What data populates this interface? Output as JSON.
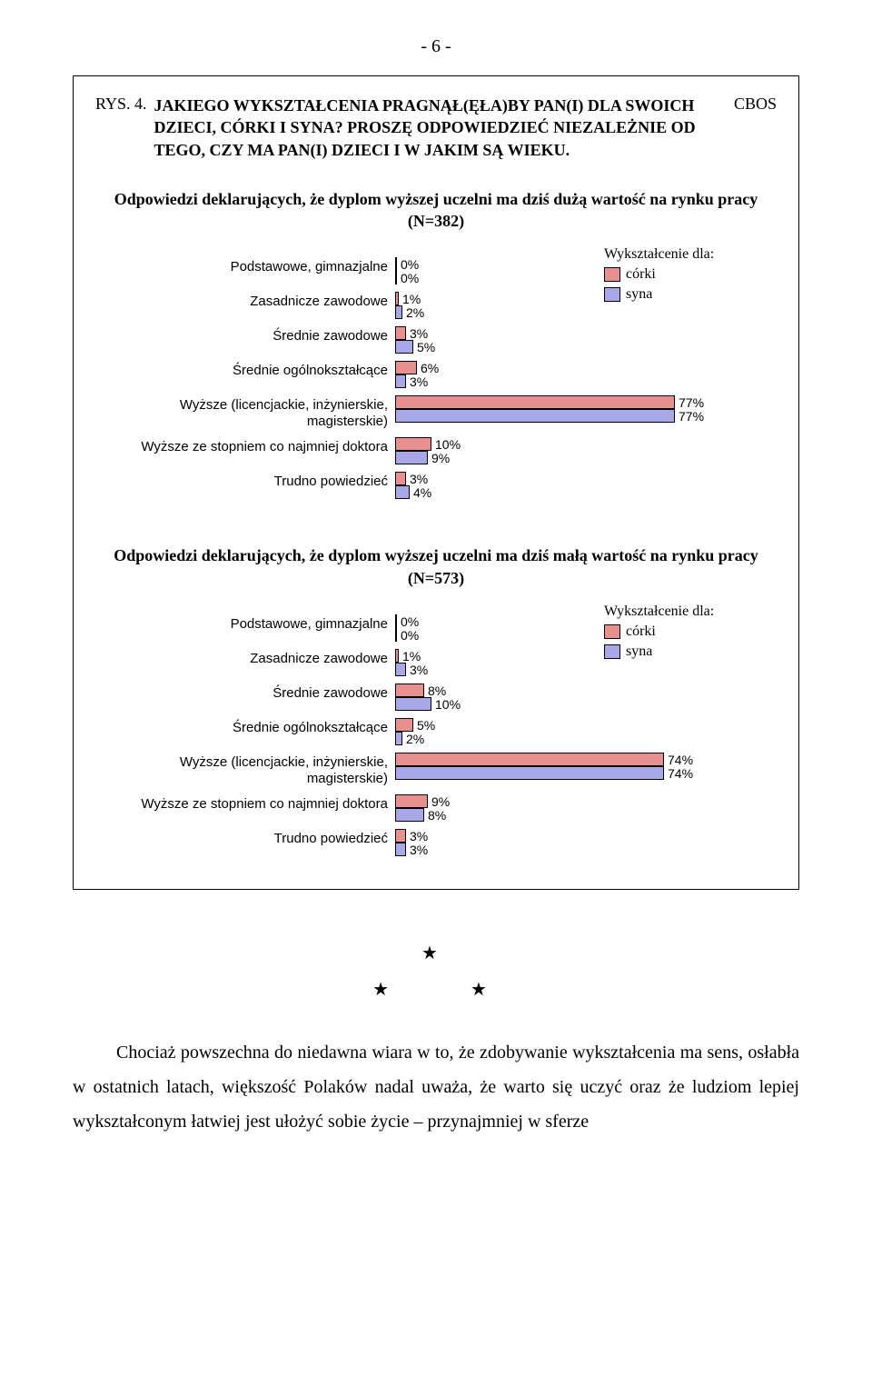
{
  "page": {
    "header": "- 6 -"
  },
  "box": {
    "rys": "RYS. 4.",
    "title_line1": "JAKIEGO WYKSZTAŁCENIA PRAGNĄŁ(ĘŁA)BY PAN(I) DLA SWOICH DZIECI, CÓRKI I SYNA?",
    "title_line2": "PROSZĘ ODPOWIEDZIEĆ NIEZALEŻNIE OD TEGO, CZY MA PAN(I) DZIECI I W JAKIM SĄ WIEKU.",
    "cbos": "CBOS"
  },
  "legend": {
    "title": "Wykształcenie dla:",
    "c_label": "córki",
    "s_label": "syna",
    "c_color": "#e89090",
    "s_color": "#a8a8e8"
  },
  "chart1": {
    "title_line1": "Odpowiedzi deklarujących, że dyplom wyższej uczelni ma dziś dużą wartość na rynku pracy",
    "title_line2": "(N=382)",
    "max": 100,
    "rows": [
      {
        "label": "Podstawowe, gimnazjalne",
        "c": 0,
        "s": 0,
        "c_txt": "0%",
        "s_txt": "0%"
      },
      {
        "label": "Zasadnicze zawodowe",
        "c": 1,
        "s": 2,
        "c_txt": "1%",
        "s_txt": "2%"
      },
      {
        "label": "Średnie zawodowe",
        "c": 3,
        "s": 5,
        "c_txt": "3%",
        "s_txt": "5%"
      },
      {
        "label": "Średnie ogólnokształcące",
        "c": 6,
        "s": 3,
        "c_txt": "6%",
        "s_txt": "3%"
      },
      {
        "label": "Wyższe (licencjackie, inżynierskie, magisterskie)",
        "c": 77,
        "s": 77,
        "c_txt": "77%",
        "s_txt": "77%"
      },
      {
        "label": "Wyższe ze stopniem co najmniej doktora",
        "c": 10,
        "s": 9,
        "c_txt": "10%",
        "s_txt": "9%"
      },
      {
        "label": "Trudno powiedzieć",
        "c": 3,
        "s": 4,
        "c_txt": "3%",
        "s_txt": "4%"
      }
    ]
  },
  "chart2": {
    "title_line1": "Odpowiedzi deklarujących, że dyplom wyższej uczelni ma dziś małą wartość na rynku pracy",
    "title_line2": "(N=573)",
    "max": 100,
    "rows": [
      {
        "label": "Podstawowe, gimnazjalne",
        "c": 0,
        "s": 0,
        "c_txt": "0%",
        "s_txt": "0%"
      },
      {
        "label": "Zasadnicze zawodowe",
        "c": 1,
        "s": 3,
        "c_txt": "1%",
        "s_txt": "3%"
      },
      {
        "label": "Średnie zawodowe",
        "c": 8,
        "s": 10,
        "c_txt": "8%",
        "s_txt": "10%"
      },
      {
        "label": "Średnie ogólnokształcące",
        "c": 5,
        "s": 2,
        "c_txt": "5%",
        "s_txt": "2%"
      },
      {
        "label": "Wyższe (licencjackie, inżynierskie, magisterskie)",
        "c": 74,
        "s": 74,
        "c_txt": "74%",
        "s_txt": "74%"
      },
      {
        "label": "Wyższe ze stopniem co najmniej doktora",
        "c": 9,
        "s": 8,
        "c_txt": "9%",
        "s_txt": "8%"
      },
      {
        "label": "Trudno powiedzieć",
        "c": 3,
        "s": 3,
        "c_txt": "3%",
        "s_txt": "3%"
      }
    ]
  },
  "paragraph": "Chociaż powszechna do niedawna wiara w to, że zdobywanie wykształcenia ma sens, osłabła w ostatnich latach, większość Polaków nadal uważa, że warto się uczyć oraz że ludziom lepiej wykształconym łatwiej jest ułożyć sobie życie – przynajmniej w sferze"
}
